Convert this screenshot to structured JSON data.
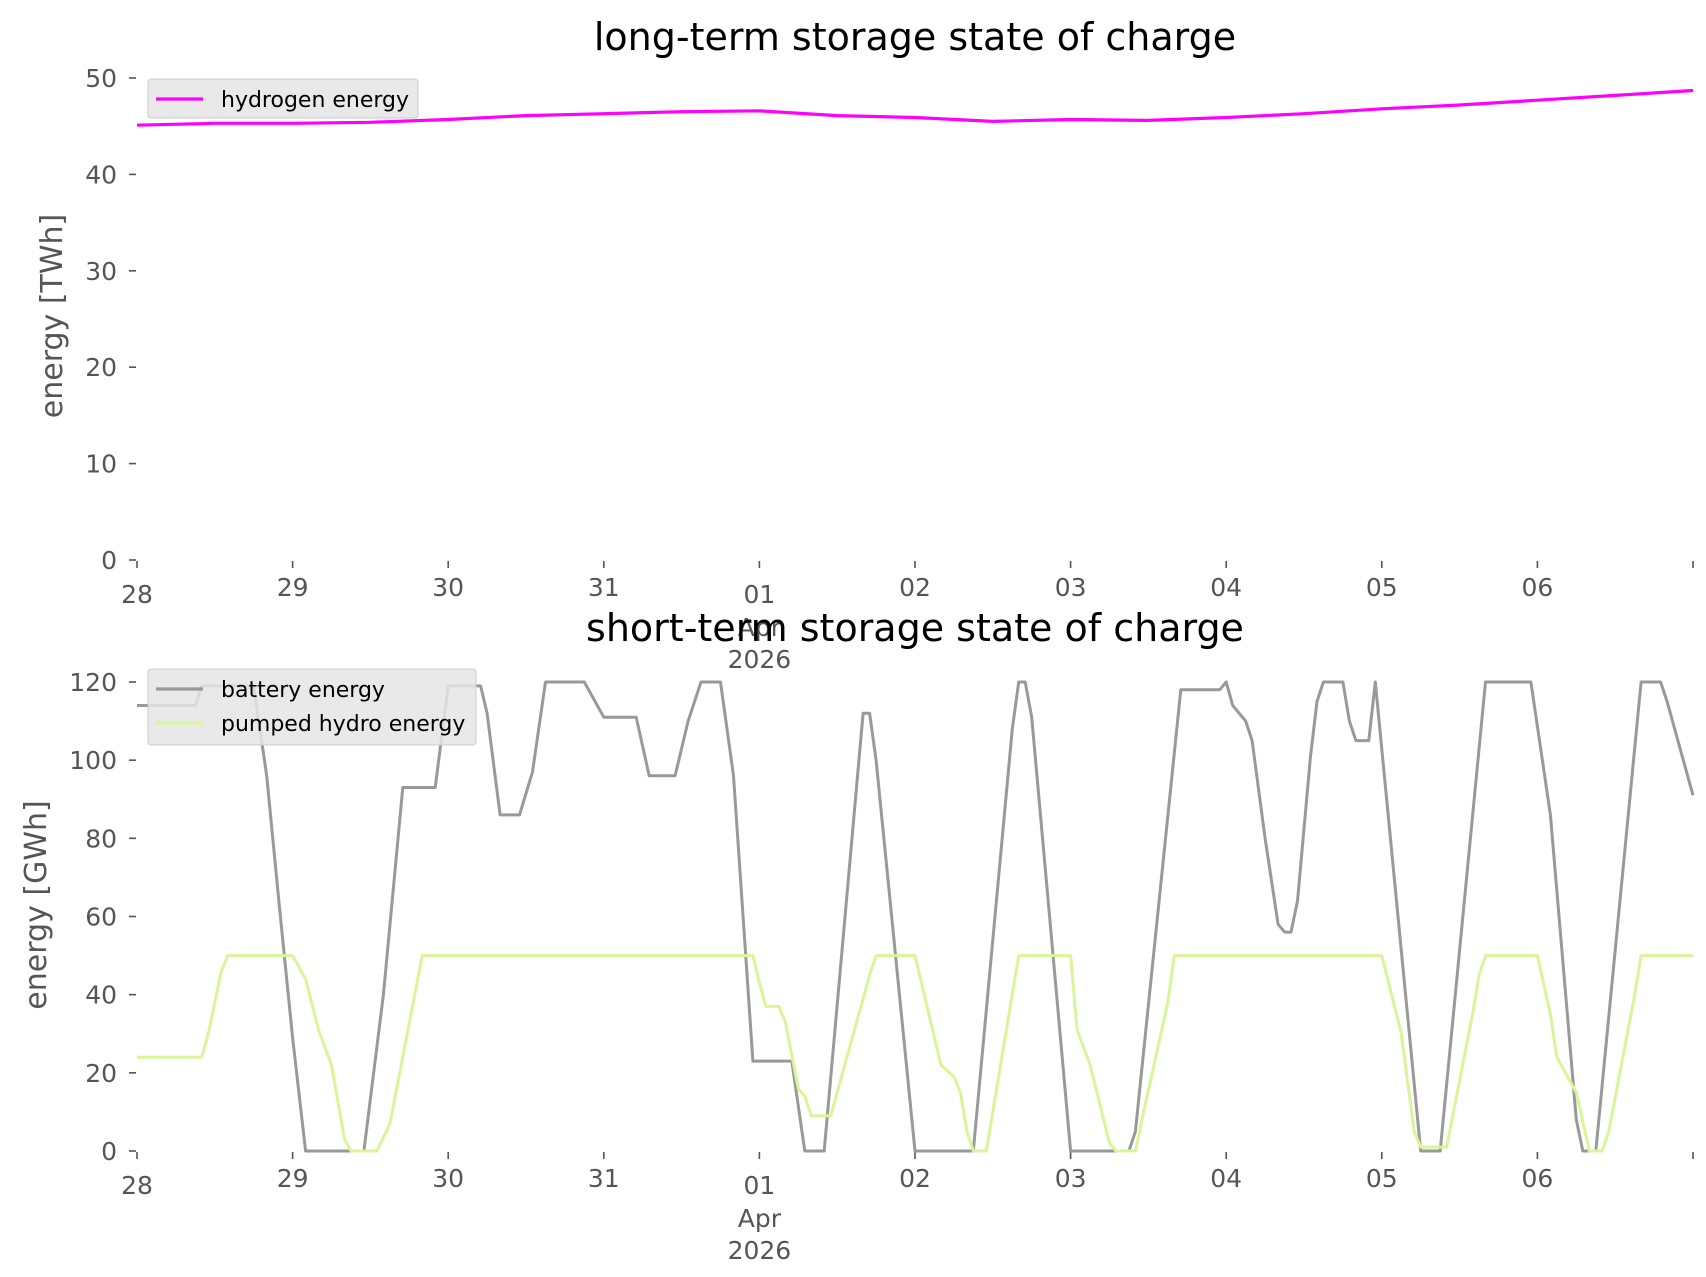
{
  "chart_data": [
    {
      "type": "line",
      "title": "long-term storage state of charge",
      "ylabel": "energy [TWh]",
      "xlabel": "",
      "ylim": [
        0,
        50
      ],
      "yticks": [
        "0",
        "10",
        "20",
        "30",
        "40",
        "50"
      ],
      "xlim": [
        "2026-03-28",
        "2026-04-07"
      ],
      "xticks": [
        {
          "date": "2026-03-28",
          "label": "28"
        },
        {
          "date": "2026-03-29",
          "label": "29"
        },
        {
          "date": "2026-03-30",
          "label": "30"
        },
        {
          "date": "2026-03-31",
          "label": "31"
        },
        {
          "date": "2026-04-01",
          "label": "01",
          "sub": [
            "Apr",
            "2026"
          ]
        },
        {
          "date": "2026-04-02",
          "label": "02"
        },
        {
          "date": "2026-04-03",
          "label": "03"
        },
        {
          "date": "2026-04-04",
          "label": "04"
        },
        {
          "date": "2026-04-05",
          "label": "05"
        },
        {
          "date": "2026-04-06",
          "label": "06"
        },
        {
          "date": "2026-04-07",
          "label": ""
        }
      ],
      "legend_position": "top-left",
      "grid": false,
      "x": [
        "2026-03-28 00:00",
        "2026-03-28 12:00",
        "2026-03-29 00:00",
        "2026-03-29 12:00",
        "2026-03-30 00:00",
        "2026-03-30 12:00",
        "2026-03-31 00:00",
        "2026-03-31 12:00",
        "2026-04-01 00:00",
        "2026-04-01 12:00",
        "2026-04-02 00:00",
        "2026-04-02 12:00",
        "2026-04-03 00:00",
        "2026-04-03 12:00",
        "2026-04-04 00:00",
        "2026-04-04 12:00",
        "2026-04-05 00:00",
        "2026-04-05 12:00",
        "2026-04-06 00:00",
        "2026-04-06 12:00",
        "2026-04-07 00:00"
      ],
      "series": [
        {
          "name": "hydrogen energy",
          "color": "#ff00ff",
          "values": [
            45.1,
            45.3,
            45.3,
            45.4,
            45.7,
            46.1,
            46.3,
            46.5,
            46.6,
            46.1,
            45.9,
            45.5,
            45.7,
            45.6,
            45.9,
            46.3,
            46.8,
            47.2,
            47.7,
            48.2,
            48.7
          ]
        }
      ]
    },
    {
      "type": "line",
      "title": "short-term storage state of charge",
      "ylabel": "energy [GWh]",
      "xlabel": "",
      "ylim": [
        0,
        120
      ],
      "yticks": [
        "0",
        "20",
        "40",
        "60",
        "80",
        "100",
        "120"
      ],
      "xlim": [
        "2026-03-28",
        "2026-04-07"
      ],
      "xticks": [
        {
          "date": "2026-03-28",
          "label": "28"
        },
        {
          "date": "2026-03-29",
          "label": "29"
        },
        {
          "date": "2026-03-30",
          "label": "30"
        },
        {
          "date": "2026-03-31",
          "label": "31"
        },
        {
          "date": "2026-04-01",
          "label": "01",
          "sub": [
            "Apr",
            "2026"
          ]
        },
        {
          "date": "2026-04-02",
          "label": "02"
        },
        {
          "date": "2026-04-03",
          "label": "03"
        },
        {
          "date": "2026-04-04",
          "label": "04"
        },
        {
          "date": "2026-04-05",
          "label": "05"
        },
        {
          "date": "2026-04-06",
          "label": "06"
        },
        {
          "date": "2026-04-07",
          "label": ""
        }
      ],
      "legend_position": "top-left",
      "grid": false,
      "series": [
        {
          "name": "battery energy",
          "color": "#999999",
          "points": [
            [
              "2026-03-28 00:00",
              114
            ],
            [
              "2026-03-28 09:00",
              114
            ],
            [
              "2026-03-28 10:00",
              119
            ],
            [
              "2026-03-28 18:00",
              119
            ],
            [
              "2026-03-28 20:00",
              96
            ],
            [
              "2026-03-28 22:00",
              62
            ],
            [
              "2026-03-29 00:00",
              29
            ],
            [
              "2026-03-29 02:00",
              0
            ],
            [
              "2026-03-29 11:00",
              0
            ],
            [
              "2026-03-29 14:00",
              40
            ],
            [
              "2026-03-29 17:00",
              93
            ],
            [
              "2026-03-29 22:00",
              93
            ],
            [
              "2026-03-30 00:00",
              119
            ],
            [
              "2026-03-30 05:00",
              119
            ],
            [
              "2026-03-30 06:00",
              112
            ],
            [
              "2026-03-30 08:00",
              86
            ],
            [
              "2026-03-30 11:00",
              86
            ],
            [
              "2026-03-30 13:00",
              97
            ],
            [
              "2026-03-30 15:00",
              120
            ],
            [
              "2026-03-30 21:00",
              120
            ],
            [
              "2026-03-31 00:00",
              111
            ],
            [
              "2026-03-31 05:00",
              111
            ],
            [
              "2026-03-31 07:00",
              96
            ],
            [
              "2026-03-31 11:00",
              96
            ],
            [
              "2026-03-31 13:00",
              110
            ],
            [
              "2026-03-31 15:00",
              120
            ],
            [
              "2026-03-31 18:00",
              120
            ],
            [
              "2026-03-31 20:00",
              96
            ],
            [
              "2026-03-31 23:00",
              23
            ],
            [
              "2026-04-01 05:00",
              23
            ],
            [
              "2026-04-01 07:00",
              0
            ],
            [
              "2026-04-01 10:00",
              0
            ],
            [
              "2026-04-01 16:00",
              112
            ],
            [
              "2026-04-01 17:00",
              112
            ],
            [
              "2026-04-01 18:00",
              100
            ],
            [
              "2026-04-02 00:00",
              0
            ],
            [
              "2026-04-02 09:00",
              0
            ],
            [
              "2026-04-02 15:00",
              108
            ],
            [
              "2026-04-02 16:00",
              120
            ],
            [
              "2026-04-02 17:00",
              120
            ],
            [
              "2026-04-02 18:00",
              111
            ],
            [
              "2026-04-03 00:00",
              0
            ],
            [
              "2026-04-03 09:00",
              0
            ],
            [
              "2026-04-03 10:00",
              5
            ],
            [
              "2026-04-03 17:00",
              118
            ],
            [
              "2026-04-03 23:00",
              118
            ],
            [
              "2026-04-04 00:00",
              120
            ],
            [
              "2026-04-04 01:00",
              114
            ],
            [
              "2026-04-04 03:00",
              110
            ],
            [
              "2026-04-04 04:00",
              105
            ],
            [
              "2026-04-04 06:00",
              80
            ],
            [
              "2026-04-04 08:00",
              58
            ],
            [
              "2026-04-04 09:00",
              56
            ],
            [
              "2026-04-04 10:00",
              56
            ],
            [
              "2026-04-04 11:00",
              64
            ],
            [
              "2026-04-04 13:00",
              101
            ],
            [
              "2026-04-04 14:00",
              115
            ],
            [
              "2026-04-04 15:00",
              120
            ],
            [
              "2026-04-04 18:00",
              120
            ],
            [
              "2026-04-04 19:00",
              110
            ],
            [
              "2026-04-04 20:00",
              105
            ],
            [
              "2026-04-04 22:00",
              105
            ],
            [
              "2026-04-04 23:00",
              120
            ],
            [
              "2026-04-05 06:00",
              0
            ],
            [
              "2026-04-05 09:00",
              0
            ],
            [
              "2026-04-05 16:00",
              120
            ],
            [
              "2026-04-05 23:00",
              120
            ],
            [
              "2026-04-06 02:00",
              86
            ],
            [
              "2026-04-06 06:00",
              8
            ],
            [
              "2026-04-06 07:00",
              0
            ],
            [
              "2026-04-06 09:00",
              0
            ],
            [
              "2026-04-06 16:00",
              120
            ],
            [
              "2026-04-06 19:00",
              120
            ],
            [
              "2026-04-06 20:00",
              115
            ],
            [
              "2026-04-07 00:00",
              91
            ]
          ]
        },
        {
          "name": "pumped hydro energy",
          "color": "#d9f59a",
          "points": [
            [
              "2026-03-28 00:00",
              24
            ],
            [
              "2026-03-28 10:00",
              24
            ],
            [
              "2026-03-28 11:00",
              30
            ],
            [
              "2026-03-28 13:00",
              46
            ],
            [
              "2026-03-28 14:00",
              50
            ],
            [
              "2026-03-28 23:00",
              50
            ],
            [
              "2026-03-29 00:00",
              50
            ],
            [
              "2026-03-29 02:00",
              44
            ],
            [
              "2026-03-29 04:00",
              31
            ],
            [
              "2026-03-29 06:00",
              22
            ],
            [
              "2026-03-29 08:00",
              3
            ],
            [
              "2026-03-29 09:00",
              0
            ],
            [
              "2026-03-29 13:00",
              0
            ],
            [
              "2026-03-29 15:00",
              7
            ],
            [
              "2026-03-29 20:00",
              50
            ],
            [
              "2026-03-31 23:00",
              50
            ],
            [
              "2026-04-01 00:00",
              43
            ],
            [
              "2026-04-01 01:00",
              37
            ],
            [
              "2026-04-01 03:00",
              37
            ],
            [
              "2026-04-01 04:00",
              33
            ],
            [
              "2026-04-01 06:00",
              16
            ],
            [
              "2026-04-01 07:00",
              14
            ],
            [
              "2026-04-01 08:00",
              9
            ],
            [
              "2026-04-01 11:00",
              9
            ],
            [
              "2026-04-01 17:00",
              45
            ],
            [
              "2026-04-01 18:00",
              50
            ],
            [
              "2026-04-01 23:00",
              50
            ],
            [
              "2026-04-02 00:00",
              50
            ],
            [
              "2026-04-02 04:00",
              22
            ],
            [
              "2026-04-02 06:00",
              19
            ],
            [
              "2026-04-02 07:00",
              15
            ],
            [
              "2026-04-02 08:00",
              5
            ],
            [
              "2026-04-02 09:00",
              0
            ],
            [
              "2026-04-02 11:00",
              0
            ],
            [
              "2026-04-02 16:00",
              50
            ],
            [
              "2026-04-02 23:00",
              50
            ],
            [
              "2026-04-03 00:00",
              50
            ],
            [
              "2026-04-03 01:00",
              31
            ],
            [
              "2026-04-03 03:00",
              22
            ],
            [
              "2026-04-03 06:00",
              2
            ],
            [
              "2026-04-03 07:00",
              0
            ],
            [
              "2026-04-03 10:00",
              0
            ],
            [
              "2026-04-03 11:00",
              8
            ],
            [
              "2026-04-03 15:00",
              38
            ],
            [
              "2026-04-03 16:00",
              50
            ],
            [
              "2026-04-04 23:00",
              50
            ],
            [
              "2026-04-05 00:00",
              50
            ],
            [
              "2026-04-05 03:00",
              30
            ],
            [
              "2026-04-05 05:00",
              5
            ],
            [
              "2026-04-05 06:00",
              1
            ],
            [
              "2026-04-05 10:00",
              1
            ],
            [
              "2026-04-05 14:00",
              35
            ],
            [
              "2026-04-05 15:00",
              45
            ],
            [
              "2026-04-05 16:00",
              50
            ],
            [
              "2026-04-06 00:00",
              50
            ],
            [
              "2026-04-06 02:00",
              35
            ],
            [
              "2026-04-06 03:00",
              24
            ],
            [
              "2026-04-06 04:00",
              21
            ],
            [
              "2026-04-06 06:00",
              15
            ],
            [
              "2026-04-06 08:00",
              0
            ],
            [
              "2026-04-06 10:00",
              0
            ],
            [
              "2026-04-06 11:00",
              5
            ],
            [
              "2026-04-06 15:00",
              40
            ],
            [
              "2026-04-06 16:00",
              50
            ],
            [
              "2026-04-07 00:00",
              50
            ]
          ]
        }
      ]
    }
  ]
}
